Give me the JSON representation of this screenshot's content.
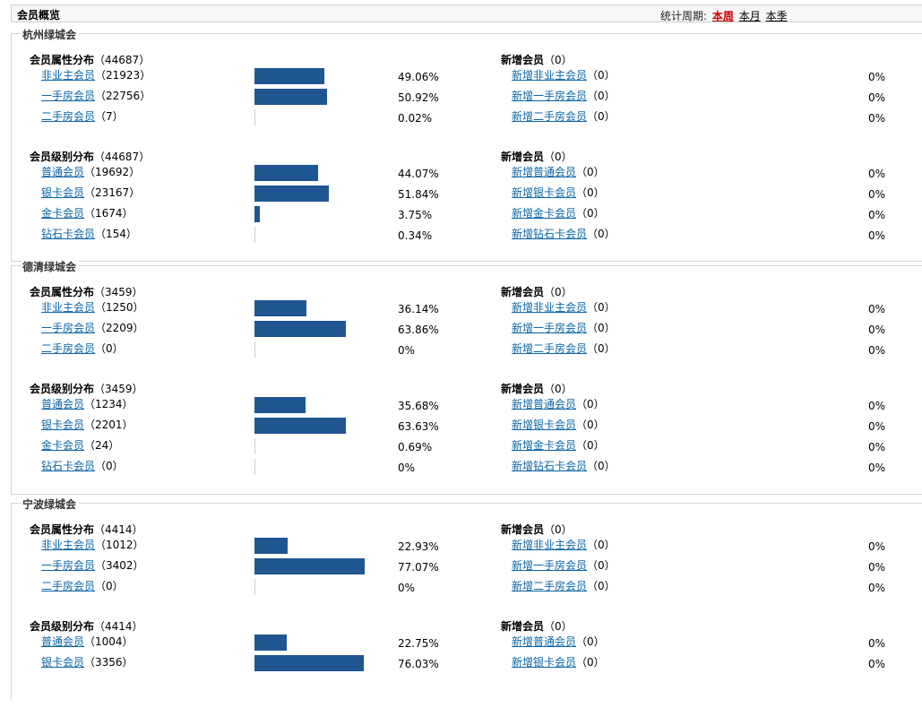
{
  "header": {
    "title": "会员概览"
  },
  "period": {
    "label": "统计周期:",
    "options": [
      "本周",
      "本月",
      "本季"
    ],
    "active": 0
  },
  "regions": [
    {
      "name": "杭州绿城会",
      "blocks": [
        {
          "title": "会员属性分布",
          "total": "（44687）",
          "new_title": "新增会员",
          "new_total": "（0）",
          "rows": [
            {
              "label": "非业主会员",
              "count": "（21923）",
              "pct": "49.06%",
              "frac": 0.4906,
              "new_label": "新增非业主会员",
              "new_count": "（0）",
              "new_pct": "0%"
            },
            {
              "label": "一手房会员",
              "count": "（22756）",
              "pct": "50.92%",
              "frac": 0.5092,
              "new_label": "新增一手房会员",
              "new_count": "（0）",
              "new_pct": "0%"
            },
            {
              "label": "二手房会员",
              "count": "（7）",
              "pct": "0.02%",
              "frac": 0.0002,
              "new_label": "新增二手房会员",
              "new_count": "（0）",
              "new_pct": "0%"
            }
          ]
        },
        {
          "title": "会员级别分布",
          "total": "（44687）",
          "new_title": "新增会员",
          "new_total": "（0）",
          "rows": [
            {
              "label": "普通会员",
              "count": "（19692）",
              "pct": "44.07%",
              "frac": 0.4407,
              "new_label": "新增普通会员",
              "new_count": "（0）",
              "new_pct": "0%"
            },
            {
              "label": "银卡会员",
              "count": "（23167）",
              "pct": "51.84%",
              "frac": 0.5184,
              "new_label": "新增银卡会员",
              "new_count": "（0）",
              "new_pct": "0%"
            },
            {
              "label": "金卡会员",
              "count": "（1674）",
              "pct": "3.75%",
              "frac": 0.0375,
              "new_label": "新增金卡会员",
              "new_count": "（0）",
              "new_pct": "0%"
            },
            {
              "label": "钻石卡会员",
              "count": "（154）",
              "pct": "0.34%",
              "frac": 0.0034,
              "new_label": "新增钻石卡会员",
              "new_count": "（0）",
              "new_pct": "0%"
            }
          ]
        }
      ]
    },
    {
      "name": "德清绿城会",
      "blocks": [
        {
          "title": "会员属性分布",
          "total": "（3459）",
          "new_title": "新增会员",
          "new_total": "（0）",
          "rows": [
            {
              "label": "非业主会员",
              "count": "（1250）",
              "pct": "36.14%",
              "frac": 0.3614,
              "new_label": "新增非业主会员",
              "new_count": "（0）",
              "new_pct": "0%"
            },
            {
              "label": "一手房会员",
              "count": "（2209）",
              "pct": "63.86%",
              "frac": 0.6386,
              "new_label": "新增一手房会员",
              "new_count": "（0）",
              "new_pct": "0%"
            },
            {
              "label": "二手房会员",
              "count": "（0）",
              "pct": "0%",
              "frac": 0,
              "new_label": "新增二手房会员",
              "new_count": "（0）",
              "new_pct": "0%"
            }
          ]
        },
        {
          "title": "会员级别分布",
          "total": "（3459）",
          "new_title": "新增会员",
          "new_total": "（0）",
          "rows": [
            {
              "label": "普通会员",
              "count": "（1234）",
              "pct": "35.68%",
              "frac": 0.3568,
              "new_label": "新增普通会员",
              "new_count": "（0）",
              "new_pct": "0%"
            },
            {
              "label": "银卡会员",
              "count": "（2201）",
              "pct": "63.63%",
              "frac": 0.6363,
              "new_label": "新增银卡会员",
              "new_count": "（0）",
              "new_pct": "0%"
            },
            {
              "label": "金卡会员",
              "count": "（24）",
              "pct": "0.69%",
              "frac": 0.0069,
              "new_label": "新增金卡会员",
              "new_count": "（0）",
              "new_pct": "0%"
            },
            {
              "label": "钻石卡会员",
              "count": "（0）",
              "pct": "0%",
              "frac": 0,
              "new_label": "新增钻石卡会员",
              "new_count": "（0）",
              "new_pct": "0%"
            }
          ]
        }
      ]
    },
    {
      "name": "宁波绿城会",
      "blocks": [
        {
          "title": "会员属性分布",
          "total": "（4414）",
          "new_title": "新增会员",
          "new_total": "（0）",
          "rows": [
            {
              "label": "非业主会员",
              "count": "（1012）",
              "pct": "22.93%",
              "frac": 0.2293,
              "new_label": "新增非业主会员",
              "new_count": "（0）",
              "new_pct": "0%"
            },
            {
              "label": "一手房会员",
              "count": "（3402）",
              "pct": "77.07%",
              "frac": 0.7707,
              "new_label": "新增一手房会员",
              "new_count": "（0）",
              "new_pct": "0%"
            },
            {
              "label": "二手房会员",
              "count": "（0）",
              "pct": "0%",
              "frac": 0,
              "new_label": "新增二手房会员",
              "new_count": "（0）",
              "new_pct": "0%"
            }
          ]
        },
        {
          "title": "会员级别分布",
          "total": "（4414）",
          "new_title": "新增会员",
          "new_total": "（0）",
          "rows": [
            {
              "label": "普通会员",
              "count": "（1004）",
              "pct": "22.75%",
              "frac": 0.2275,
              "new_label": "新增普通会员",
              "new_count": "（0）",
              "new_pct": "0%"
            },
            {
              "label": "银卡会员",
              "count": "（3356）",
              "pct": "76.03%",
              "frac": 0.7603,
              "new_label": "新增银卡会员",
              "new_count": "（0）",
              "new_pct": "0%"
            }
          ]
        }
      ]
    }
  ],
  "colors": {
    "bar": "#1f5591",
    "link": "#0a64a5",
    "active_period": "#cc0000"
  }
}
